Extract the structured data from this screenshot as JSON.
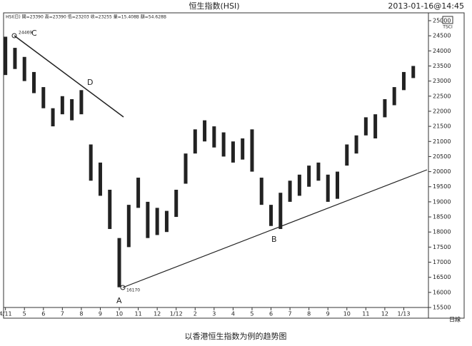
{
  "chart_data": {
    "type": "range-bar",
    "title": "恒生指数(HSI)",
    "timestamp": "2013-01-16@14:45",
    "info": "HSI(日) 開=23390 高=23390 低=23203 收=23255 量=15.408B 額=54.628B",
    "caption": "以香港恒生指数为例的趋势图",
    "period": "日線",
    "logo": "TSCI",
    "annotations": [
      "24469",
      "C",
      "D",
      "A",
      "16170",
      "B"
    ],
    "color": "#222222",
    "x": [
      0,
      0.5,
      1,
      1.5,
      2,
      2.5,
      3,
      3.5,
      4,
      4.5,
      5,
      5.5,
      6,
      6.5,
      7,
      7.5,
      8,
      8.5,
      9,
      9.5,
      10,
      10.5,
      11,
      11.5,
      12,
      12.5,
      13,
      13.5,
      14,
      14.5,
      15,
      15.5,
      16,
      16.5,
      17,
      17.5,
      18,
      18.5,
      19,
      19.5,
      20,
      20.5,
      21,
      21.5
    ],
    "highs": [
      24469,
      24100,
      23800,
      23300,
      22800,
      22100,
      22500,
      22400,
      22700,
      20900,
      20300,
      19400,
      17800,
      18900,
      19800,
      19000,
      18800,
      18700,
      19400,
      20600,
      21400,
      21700,
      21500,
      21300,
      21000,
      21100,
      21400,
      19800,
      18900,
      19300,
      19700,
      19900,
      20200,
      20300,
      19900,
      20000,
      20900,
      21200,
      21800,
      21900,
      22400,
      22800,
      23300,
      23500
    ],
    "lows": [
      23200,
      23400,
      23000,
      22600,
      22100,
      21500,
      21900,
      21700,
      21900,
      19700,
      19200,
      18100,
      16170,
      17500,
      18800,
      17800,
      17900,
      18000,
      18500,
      19600,
      20600,
      21000,
      20800,
      20500,
      20300,
      20400,
      20000,
      18900,
      18200,
      18100,
      19000,
      19200,
      19500,
      19700,
      19000,
      19100,
      20200,
      20600,
      21200,
      21100,
      21800,
      22200,
      22700,
      23100
    ],
    "xlim": [
      -0.1,
      22.3
    ],
    "ylim": [
      15500,
      25000
    ],
    "xticks": [
      {
        "value": 0,
        "label": "4/11"
      },
      {
        "value": 1,
        "label": "5"
      },
      {
        "value": 2,
        "label": "6"
      },
      {
        "value": 3,
        "label": "7"
      },
      {
        "value": 4,
        "label": "8"
      },
      {
        "value": 5,
        "label": "9"
      },
      {
        "value": 6,
        "label": "10"
      },
      {
        "value": 7,
        "label": "11"
      },
      {
        "value": 8,
        "label": "12"
      },
      {
        "value": 9,
        "label": "1/12"
      },
      {
        "value": 10,
        "label": "2"
      },
      {
        "value": 11,
        "label": "3"
      },
      {
        "value": 12,
        "label": "4"
      },
      {
        "value": 13,
        "label": "5"
      },
      {
        "value": 14,
        "label": "6"
      },
      {
        "value": 15,
        "label": "7"
      },
      {
        "value": 16,
        "label": "8"
      },
      {
        "value": 17,
        "label": "9"
      },
      {
        "value": 18,
        "label": "10"
      },
      {
        "value": 19,
        "label": "11"
      },
      {
        "value": 20,
        "label": "12"
      },
      {
        "value": 21,
        "label": "1/13"
      }
    ],
    "yticks": [
      15500,
      16000,
      16500,
      17000,
      17500,
      18000,
      18500,
      19000,
      19500,
      20000,
      20500,
      21000,
      21500,
      22000,
      22500,
      23000,
      23500,
      24000,
      24500,
      25000
    ]
  }
}
